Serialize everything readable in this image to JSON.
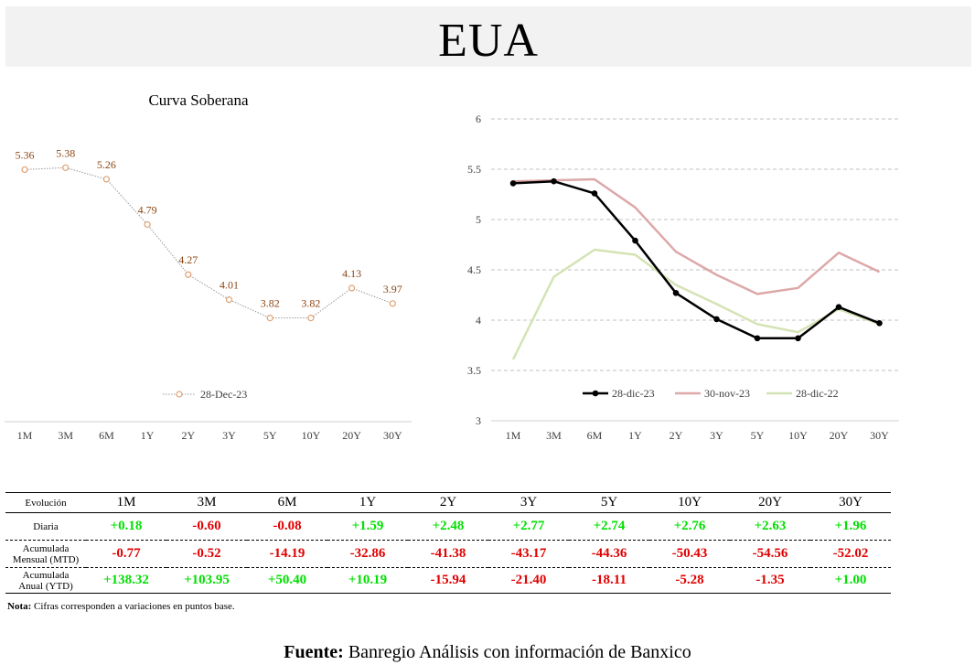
{
  "page": {
    "title": "EUA"
  },
  "chart_data": [
    {
      "type": "line",
      "title": "Curva Soberana",
      "categories": [
        "1M",
        "3M",
        "6M",
        "1Y",
        "2Y",
        "3Y",
        "5Y",
        "10Y",
        "20Y",
        "30Y"
      ],
      "series": [
        {
          "name": "28-Dec-23",
          "values": [
            5.36,
            5.38,
            5.26,
            4.79,
            4.27,
            4.01,
            3.82,
            3.82,
            4.13,
            3.97
          ]
        }
      ],
      "data_labels": [
        "5.36",
        "5.38",
        "5.26",
        "4.79",
        "4.27",
        "4.01",
        "3.82",
        "3.82",
        "4.13",
        "3.97"
      ],
      "ylim": [
        3,
        6
      ],
      "legend": "bottom",
      "colors": {
        "line": "#999999",
        "marker": "#e0a070",
        "label": "#8b4513"
      }
    },
    {
      "type": "line",
      "categories": [
        "1M",
        "3M",
        "6M",
        "1Y",
        "2Y",
        "3Y",
        "5Y",
        "10Y",
        "20Y",
        "30Y"
      ],
      "yticks": [
        "3",
        "3.5",
        "4",
        "4.5",
        "5",
        "5.5",
        "6"
      ],
      "ylim": [
        3,
        6
      ],
      "grid": true,
      "legend": "bottom",
      "series": [
        {
          "name": "28-dic-22",
          "values": [
            3.61,
            4.43,
            4.7,
            4.65,
            4.35,
            4.16,
            3.96,
            3.88,
            4.11,
            3.96
          ],
          "color": "#d4e3b5"
        },
        {
          "name": "30-nov-23",
          "values": [
            5.38,
            5.39,
            5.4,
            5.12,
            4.68,
            4.45,
            4.26,
            4.32,
            4.67,
            4.48
          ],
          "color": "#dda8a8"
        },
        {
          "name": "28-dic-23",
          "values": [
            5.36,
            5.38,
            5.26,
            4.79,
            4.27,
            4.01,
            3.82,
            3.82,
            4.13,
            3.97
          ],
          "color": "#000000"
        }
      ],
      "legend_order": [
        "28-dic-23",
        "30-nov-23",
        "28-dic-22"
      ]
    }
  ],
  "table": {
    "corner": "Evolución",
    "columns": [
      "1M",
      "3M",
      "6M",
      "1Y",
      "2Y",
      "3Y",
      "5Y",
      "10Y",
      "20Y",
      "30Y"
    ],
    "rows": [
      {
        "label1": "Diaria",
        "label2": "",
        "values": [
          "+0.18",
          "-0.60",
          "-0.08",
          "+1.59",
          "+2.48",
          "+2.77",
          "+2.74",
          "+2.76",
          "+2.63",
          "+1.96"
        ]
      },
      {
        "label1": "Acumulada",
        "label2": "Mensual (MTD)",
        "values": [
          "-0.77",
          "-0.52",
          "-14.19",
          "-32.86",
          "-41.38",
          "-43.17",
          "-44.36",
          "-50.43",
          "-54.56",
          "-52.02"
        ]
      },
      {
        "label1": "Acumulada",
        "label2": "Anual (YTD)",
        "values": [
          "+138.32",
          "+103.95",
          "+50.40",
          "+10.19",
          "-15.94",
          "-21.40",
          "-18.11",
          "-5.28",
          "-1.35",
          "+1.00"
        ]
      }
    ],
    "colors": {
      "positive": "#00e000",
      "negative": "#e00000"
    }
  },
  "note": {
    "label": "Nota:",
    "text": " Cifras corresponden a variaciones en puntos base."
  },
  "source": {
    "label": "Fuente:",
    "text": " Banregio Análisis con información de Banxico"
  }
}
